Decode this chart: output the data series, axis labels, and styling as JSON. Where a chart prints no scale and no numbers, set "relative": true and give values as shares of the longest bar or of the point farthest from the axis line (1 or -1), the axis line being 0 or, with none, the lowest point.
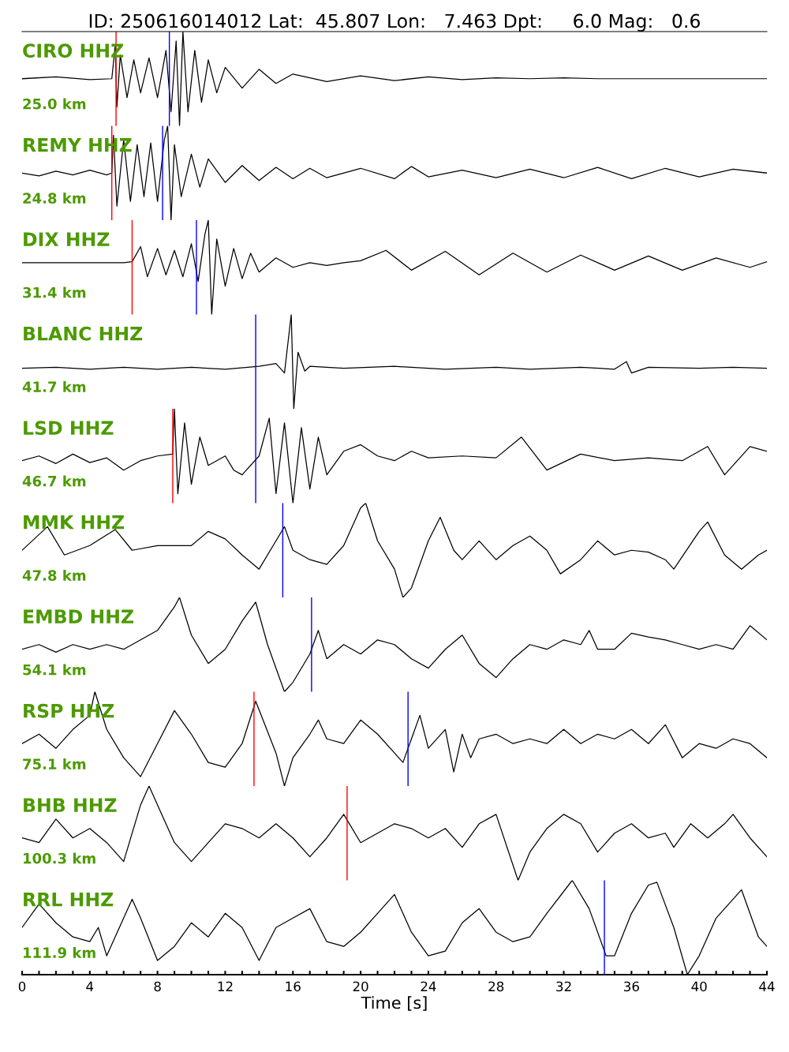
{
  "chart_data": [
    {
      "type": "line",
      "title": "ID: 250616014012 Lat:  45.807 Lon:   7.463 Dpt:     6.0 Mag:   0.6",
      "relative": true,
      "xlim": [
        0,
        44
      ],
      "tick_labels": false,
      "annotations": [
        "CIRO HHZ",
        "25.0 km"
      ],
      "series": [
        {
          "color": "#000000",
          "x": [
            0,
            2,
            4,
            5.3,
            5.5,
            5.6,
            5.8,
            6.2,
            6.6,
            7,
            7.5,
            8,
            8.5,
            8.8,
            9.1,
            9.3,
            9.5,
            9.8,
            10.2,
            10.6,
            11,
            11.5,
            12,
            13,
            14,
            15,
            16,
            18,
            20,
            22,
            24,
            26,
            28,
            30,
            32,
            34,
            38,
            44
          ],
          "values": [
            0.5,
            0.52,
            0.49,
            0.5,
            0.85,
            0.2,
            0.75,
            0.3,
            0.7,
            0.35,
            0.72,
            0.3,
            0.8,
            0.15,
            0.9,
            0,
            1,
            0.15,
            0.8,
            0.25,
            0.7,
            0.35,
            0.62,
            0.4,
            0.6,
            0.45,
            0.55,
            0.47,
            0.53,
            0.48,
            0.52,
            0.49,
            0.51,
            0.5,
            0.51,
            0.5,
            0.5,
            0.5
          ]
        }
      ],
      "ref_lines": [
        {
          "axis": "x",
          "value": 5.55,
          "color": "#ff0000"
        },
        {
          "axis": "x",
          "value": 8.7,
          "color": "#0000ff"
        }
      ]
    },
    {
      "type": "line",
      "relative": true,
      "xlim": [
        0,
        44
      ],
      "tick_labels": false,
      "annotations": [
        "REMY HHZ",
        "24.8 km"
      ],
      "series": [
        {
          "color": "#000000",
          "x": [
            0,
            1,
            2,
            3,
            4,
            5,
            5.3,
            5.4,
            5.6,
            6,
            6.4,
            6.8,
            7.2,
            7.6,
            8,
            8.4,
            8.6,
            8.8,
            9,
            9.4,
            10,
            10.5,
            11,
            12,
            13,
            14,
            15,
            16,
            17,
            18,
            20,
            22,
            23,
            24,
            26,
            28,
            30,
            32,
            34,
            36,
            38,
            40,
            42,
            44
          ],
          "values": [
            0.5,
            0.47,
            0.52,
            0.48,
            0.53,
            0.48,
            0.5,
            0.9,
            0.15,
            0.85,
            0.2,
            0.8,
            0.25,
            0.82,
            0.2,
            0.85,
            1,
            0,
            0.8,
            0.25,
            0.7,
            0.35,
            0.65,
            0.4,
            0.58,
            0.42,
            0.56,
            0.44,
            0.55,
            0.45,
            0.55,
            0.44,
            0.57,
            0.46,
            0.53,
            0.45,
            0.54,
            0.45,
            0.56,
            0.44,
            0.55,
            0.46,
            0.54,
            0.5
          ]
        }
      ],
      "ref_lines": [
        {
          "axis": "x",
          "value": 5.3,
          "color": "#ff0000"
        },
        {
          "axis": "x",
          "value": 8.3,
          "color": "#0000ff"
        }
      ]
    },
    {
      "type": "line",
      "relative": true,
      "xlim": [
        0,
        44
      ],
      "tick_labels": false,
      "annotations": [
        "DIX HHZ",
        "31.4 km"
      ],
      "series": [
        {
          "color": "#000000",
          "x": [
            0,
            2,
            4,
            6,
            6.5,
            7,
            7.4,
            8,
            8.5,
            9,
            9.5,
            10,
            10.4,
            10.8,
            11,
            11.2,
            11.5,
            12,
            12.5,
            13,
            13.5,
            14,
            15,
            16,
            17,
            18,
            19,
            20,
            21.5,
            23,
            25,
            27,
            29,
            31,
            33,
            35,
            37,
            39,
            41,
            43,
            44
          ],
          "values": [
            0.55,
            0.55,
            0.55,
            0.55,
            0.56,
            0.72,
            0.4,
            0.7,
            0.42,
            0.68,
            0.4,
            0.75,
            0.35,
            0.85,
            1,
            0,
            0.8,
            0.3,
            0.7,
            0.38,
            0.65,
            0.45,
            0.6,
            0.5,
            0.55,
            0.52,
            0.55,
            0.57,
            0.68,
            0.47,
            0.67,
            0.42,
            0.65,
            0.45,
            0.63,
            0.47,
            0.62,
            0.47,
            0.6,
            0.5,
            0.56
          ]
        }
      ],
      "ref_lines": [
        {
          "axis": "x",
          "value": 6.5,
          "color": "#ff0000"
        },
        {
          "axis": "x",
          "value": 10.3,
          "color": "#0000ff"
        }
      ]
    },
    {
      "type": "line",
      "relative": true,
      "xlim": [
        0,
        44
      ],
      "tick_labels": false,
      "annotations": [
        "BLANC HHZ",
        "41.7 km"
      ],
      "series": [
        {
          "color": "#000000",
          "x": [
            0,
            2,
            4,
            6,
            8,
            10,
            12,
            14,
            15,
            15.5,
            15.9,
            16.05,
            16.3,
            16.7,
            17,
            19,
            22,
            25,
            28,
            30,
            33,
            35,
            35.7,
            36,
            37,
            40,
            42,
            44
          ],
          "values": [
            0.43,
            0.44,
            0.42,
            0.44,
            0.42,
            0.44,
            0.42,
            0.45,
            0.48,
            0.38,
            1,
            0,
            0.6,
            0.4,
            0.45,
            0.43,
            0.45,
            0.42,
            0.44,
            0.42,
            0.44,
            0.42,
            0.5,
            0.38,
            0.44,
            0.43,
            0.44,
            0.43
          ]
        }
      ],
      "ref_lines": [
        {
          "axis": "x",
          "value": 13.8,
          "color": "#0000ff"
        }
      ]
    },
    {
      "type": "line",
      "relative": true,
      "xlim": [
        0,
        44
      ],
      "tick_labels": false,
      "annotations": [
        "LSD HHZ",
        "46.7 km"
      ],
      "series": [
        {
          "color": "#000000",
          "x": [
            0,
            1,
            2,
            3,
            4,
            5,
            6,
            7,
            8,
            8.9,
            9,
            9.2,
            9.6,
            10,
            10.5,
            11,
            12,
            12.5,
            13,
            14,
            14.6,
            15,
            15.5,
            16,
            16.5,
            17,
            17.5,
            18,
            19,
            20,
            21,
            22,
            23,
            24,
            26,
            28,
            29.5,
            31,
            33,
            35,
            37,
            39,
            40.5,
            41.5,
            43,
            44
          ],
          "values": [
            0.45,
            0.5,
            0.42,
            0.52,
            0.43,
            0.48,
            0.35,
            0.45,
            0.5,
            0.52,
            1,
            0.1,
            0.85,
            0.2,
            0.7,
            0.4,
            0.5,
            0.35,
            0.3,
            0.5,
            0.9,
            0.1,
            0.85,
            0,
            0.8,
            0.15,
            0.7,
            0.3,
            0.55,
            0.62,
            0.5,
            0.45,
            0.55,
            0.48,
            0.5,
            0.48,
            0.7,
            0.35,
            0.52,
            0.45,
            0.48,
            0.45,
            0.6,
            0.3,
            0.6,
            0.55
          ]
        }
      ],
      "ref_lines": [
        {
          "axis": "x",
          "value": 8.9,
          "color": "#ff0000"
        },
        {
          "axis": "x",
          "value": 13.8,
          "color": "#0000ff"
        }
      ]
    },
    {
      "type": "line",
      "relative": true,
      "xlim": [
        0,
        44
      ],
      "tick_labels": false,
      "annotations": [
        "MMK HHZ",
        "47.8 km"
      ],
      "series": [
        {
          "color": "#000000",
          "x": [
            0,
            1.5,
            2.5,
            4,
            5.5,
            6.5,
            8,
            10,
            11,
            12,
            13,
            14,
            15,
            15.5,
            16,
            17,
            18,
            19,
            20,
            20.3,
            21,
            22,
            22.5,
            23,
            24,
            24.7,
            25.5,
            26,
            27,
            28,
            29,
            30,
            31,
            31.8,
            33,
            34,
            35,
            36,
            37,
            38,
            38.5,
            40,
            40.5,
            41.5,
            42.5,
            43.5,
            44
          ],
          "values": [
            0.5,
            0.75,
            0.45,
            0.55,
            0.72,
            0.5,
            0.55,
            0.55,
            0.7,
            0.62,
            0.45,
            0.3,
            0.6,
            0.75,
            0.5,
            0.4,
            0.35,
            0.55,
            0.95,
            1,
            0.6,
            0.3,
            0,
            0.1,
            0.6,
            0.85,
            0.5,
            0.4,
            0.6,
            0.4,
            0.55,
            0.65,
            0.5,
            0.25,
            0.4,
            0.6,
            0.45,
            0.5,
            0.48,
            0.4,
            0.3,
            0.7,
            0.8,
            0.45,
            0.3,
            0.45,
            0.5
          ]
        }
      ],
      "ref_lines": [
        {
          "axis": "x",
          "value": 15.4,
          "color": "#0000ff"
        }
      ]
    },
    {
      "type": "line",
      "relative": true,
      "xlim": [
        0,
        44
      ],
      "tick_labels": false,
      "annotations": [
        "EMBD HHZ",
        "54.1 km"
      ],
      "series": [
        {
          "color": "#000000",
          "x": [
            0,
            1,
            2,
            3,
            4,
            5,
            6,
            7,
            8,
            9,
            9.3,
            10,
            11,
            12,
            13,
            13.8,
            14.5,
            15.5,
            16,
            17,
            17.5,
            18,
            19,
            20,
            21,
            22,
            23,
            24,
            25,
            26,
            27,
            28,
            29,
            30,
            31,
            32,
            33,
            33.5,
            34,
            35,
            36,
            37,
            38,
            39,
            40,
            41,
            42,
            43,
            44
          ],
          "values": [
            0.45,
            0.5,
            0.42,
            0.5,
            0.45,
            0.5,
            0.45,
            0.55,
            0.65,
            0.9,
            1,
            0.6,
            0.3,
            0.45,
            0.75,
            0.95,
            0.5,
            0,
            0.1,
            0.4,
            0.65,
            0.35,
            0.5,
            0.4,
            0.55,
            0.5,
            0.35,
            0.25,
            0.45,
            0.6,
            0.3,
            0.15,
            0.35,
            0.5,
            0.45,
            0.55,
            0.5,
            0.65,
            0.45,
            0.45,
            0.62,
            0.58,
            0.55,
            0.5,
            0.45,
            0.5,
            0.45,
            0.7,
            0.55
          ]
        }
      ],
      "ref_lines": [
        {
          "axis": "x",
          "value": 17.1,
          "color": "#0000ff"
        }
      ]
    },
    {
      "type": "line",
      "relative": true,
      "xlim": [
        0,
        44
      ],
      "tick_labels": false,
      "annotations": [
        "RSP HHZ",
        "75.1 km"
      ],
      "series": [
        {
          "color": "#000000",
          "x": [
            0,
            1,
            2,
            3,
            4,
            4.3,
            5,
            6,
            7,
            8,
            9,
            10,
            11,
            12,
            13,
            13.8,
            15,
            15.5,
            16,
            17,
            17.5,
            18,
            19,
            20,
            21,
            22,
            22.5,
            23,
            23.5,
            24,
            25,
            25.5,
            26,
            26.5,
            27,
            28,
            29,
            30,
            31,
            32,
            33,
            34,
            35,
            36,
            37,
            38,
            39,
            40,
            41,
            42,
            43,
            44
          ],
          "values": [
            0.45,
            0.55,
            0.4,
            0.6,
            0.75,
            1,
            0.6,
            0.3,
            0.1,
            0.45,
            0.8,
            0.55,
            0.25,
            0.2,
            0.45,
            0.9,
            0.35,
            0,
            0.3,
            0.55,
            0.7,
            0.5,
            0.45,
            0.7,
            0.55,
            0.35,
            0.25,
            0.5,
            0.75,
            0.4,
            0.6,
            0.15,
            0.55,
            0.3,
            0.5,
            0.55,
            0.45,
            0.5,
            0.45,
            0.6,
            0.45,
            0.55,
            0.5,
            0.6,
            0.45,
            0.65,
            0.3,
            0.45,
            0.4,
            0.5,
            0.45,
            0.3
          ]
        }
      ],
      "ref_lines": [
        {
          "axis": "x",
          "value": 13.7,
          "color": "#ff0000"
        },
        {
          "axis": "x",
          "value": 22.8,
          "color": "#0000ff"
        }
      ]
    },
    {
      "type": "line",
      "relative": true,
      "xlim": [
        0,
        44
      ],
      "tick_labels": false,
      "annotations": [
        "BHB HHZ",
        "100.3 km"
      ],
      "series": [
        {
          "color": "#000000",
          "x": [
            0,
            1,
            2,
            3,
            4,
            5,
            6,
            7,
            7.5,
            8,
            9,
            10,
            11,
            12,
            13,
            14,
            15,
            16,
            17,
            18,
            19,
            20,
            21,
            22,
            23,
            24,
            25,
            26,
            27,
            28,
            29.3,
            30,
            31,
            32,
            33,
            34,
            35,
            36,
            37,
            38,
            38.5,
            39.5,
            40.5,
            41.5,
            42,
            43,
            44
          ],
          "values": [
            0.45,
            0.4,
            0.65,
            0.45,
            0.55,
            0.4,
            0.2,
            0.8,
            1,
            0.8,
            0.4,
            0.2,
            0.4,
            0.6,
            0.55,
            0.45,
            0.6,
            0.45,
            0.25,
            0.45,
            0.7,
            0.4,
            0.5,
            0.6,
            0.55,
            0.45,
            0.55,
            0.35,
            0.6,
            0.7,
            0,
            0.3,
            0.55,
            0.7,
            0.6,
            0.3,
            0.5,
            0.6,
            0.45,
            0.5,
            0.35,
            0.6,
            0.45,
            0.6,
            0.7,
            0.45,
            0.25
          ]
        }
      ],
      "ref_lines": [
        {
          "axis": "x",
          "value": 19.2,
          "color": "#ff0000"
        }
      ]
    },
    {
      "type": "line",
      "relative": true,
      "xlim": [
        0,
        44
      ],
      "tick_labels": "x",
      "xlabel": "Time [s]",
      "annotations": [
        "RRL HHZ",
        "111.9 km"
      ],
      "xticks": [
        0,
        {
          "value": 1,
          "label": null
        },
        {
          "value": 2,
          "label": null
        },
        {
          "value": 3,
          "label": null
        },
        4,
        {
          "value": 5,
          "label": null
        },
        {
          "value": 6,
          "label": null
        },
        {
          "value": 7,
          "label": null
        },
        8,
        {
          "value": 9,
          "label": null
        },
        {
          "value": 10,
          "label": null
        },
        {
          "value": 11,
          "label": null
        },
        12,
        {
          "value": 13,
          "label": null
        },
        {
          "value": 14,
          "label": null
        },
        {
          "value": 15,
          "label": null
        },
        16,
        {
          "value": 17,
          "label": null
        },
        {
          "value": 18,
          "label": null
        },
        {
          "value": 19,
          "label": null
        },
        20,
        {
          "value": 21,
          "label": null
        },
        {
          "value": 22,
          "label": null
        },
        {
          "value": 23,
          "label": null
        },
        24,
        {
          "value": 25,
          "label": null
        },
        {
          "value": 26,
          "label": null
        },
        {
          "value": 27,
          "label": null
        },
        28,
        {
          "value": 29,
          "label": null
        },
        {
          "value": 30,
          "label": null
        },
        {
          "value": 31,
          "label": null
        },
        32,
        {
          "value": 33,
          "label": null
        },
        {
          "value": 34,
          "label": null
        },
        {
          "value": 35,
          "label": null
        },
        36,
        {
          "value": 37,
          "label": null
        },
        {
          "value": 38,
          "label": null
        },
        {
          "value": 39,
          "label": null
        },
        40,
        {
          "value": 41,
          "label": null
        },
        {
          "value": 42,
          "label": null
        },
        {
          "value": 43,
          "label": null
        },
        44
      ],
      "series": [
        {
          "color": "#000000",
          "x": [
            0,
            1,
            2,
            3,
            4,
            4.5,
            5,
            6,
            6.5,
            7,
            8,
            9,
            10,
            11,
            12,
            13,
            14,
            15,
            16,
            17,
            18,
            19,
            20,
            21,
            22,
            23,
            24,
            25,
            26,
            27,
            28,
            29,
            30,
            31,
            32.5,
            33.5,
            34.5,
            35,
            36,
            37,
            37.5,
            38.5,
            39.3,
            40,
            41,
            42.5,
            43.5,
            44
          ],
          "values": [
            0.5,
            0.75,
            0.55,
            0.4,
            0.35,
            0.5,
            0.2,
            0.6,
            0.8,
            0.6,
            0.15,
            0.3,
            0.55,
            0.4,
            0.65,
            0.5,
            0.15,
            0.5,
            0.6,
            0.7,
            0.35,
            0.3,
            0.45,
            0.65,
            0.85,
            0.45,
            0.2,
            0.25,
            0.55,
            0.7,
            0.45,
            0.35,
            0.4,
            0.65,
            1,
            0.7,
            0.2,
            0.2,
            0.65,
            0.95,
            0.98,
            0.5,
            0,
            0.2,
            0.6,
            0.9,
            0.4,
            0.3
          ]
        }
      ],
      "ref_lines": [
        {
          "axis": "x",
          "value": 34.4,
          "color": "#0000ff"
        }
      ]
    }
  ]
}
